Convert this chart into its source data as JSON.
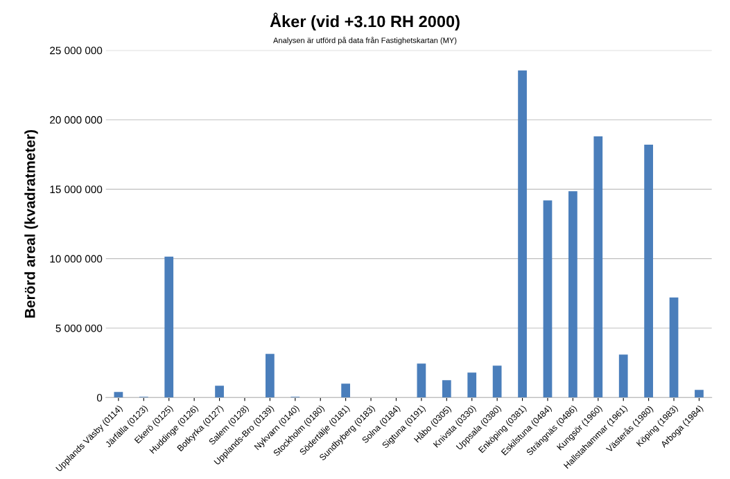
{
  "chart_data": {
    "type": "bar",
    "title": "Åker (vid +3.10 RH 2000)",
    "subtitle": "Analysen är utförd på data från Fastighetskartan (MY)",
    "ylabel": "Berörd areal (kvadratmeter)",
    "categories": [
      "Upplands Väsby (0114)",
      "Järfälla (0123)",
      "Ekerö (0125)",
      "Huddinge (0126)",
      "Botkyrka (0127)",
      "Salem (0128)",
      "Upplands-Bro (0139)",
      "Nykvarn (0140)",
      "Stockholm (0180)",
      "Södertälje (0181)",
      "Sundbyberg (0183)",
      "Solna (0184)",
      "Sigtuna (0191)",
      "Håbo (0305)",
      "Knivsta (0330)",
      "Uppsala (0380)",
      "Enköping (0381)",
      "Eskilstuna (0484)",
      "Strängnäs (0486)",
      "Kungsör (1960)",
      "Hallstahammar (1961)",
      "Västerås (1980)",
      "Köping (1983)",
      "Arboga (1984)"
    ],
    "values": [
      400000,
      50000,
      10150000,
      0,
      850000,
      0,
      3150000,
      50000,
      0,
      1000000,
      0,
      0,
      2450000,
      1250000,
      1800000,
      2300000,
      23550000,
      14200000,
      14850000,
      18800000,
      3100000,
      18200000,
      7200000,
      550000
    ],
    "color": "#4a7ebb",
    "ylim": [
      0,
      25000000
    ],
    "yticks": [
      {
        "value": 0,
        "label": "0"
      },
      {
        "value": 5000000,
        "label": "5 000 000"
      },
      {
        "value": 10000000,
        "label": "10 000 000"
      },
      {
        "value": 15000000,
        "label": "15 000 000"
      },
      {
        "value": 20000000,
        "label": "20 000 000"
      },
      {
        "value": 25000000,
        "label": "25 000 000"
      }
    ],
    "grid": "y"
  }
}
